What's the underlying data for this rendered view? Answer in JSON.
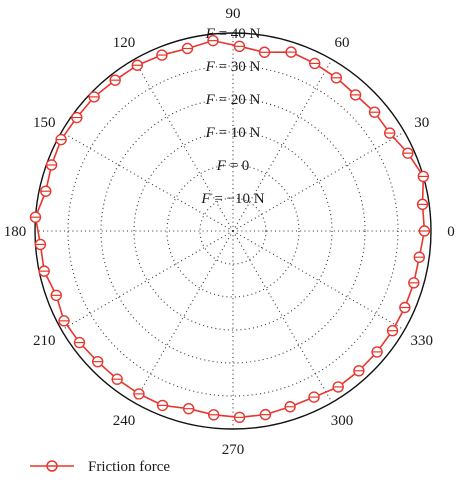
{
  "chart_data": {
    "type": "polar-line",
    "angular_axis": {
      "unit": "deg",
      "direction": "counterclockwise",
      "zero_at": "right",
      "tick_labels": [
        "0",
        "30",
        "60",
        "90",
        "120",
        "150",
        "180",
        "210",
        "240",
        "270",
        "300",
        "330"
      ]
    },
    "radial_axis": {
      "range": [
        -20,
        40
      ],
      "ring_values": [
        -10,
        0,
        10,
        20,
        30,
        40
      ],
      "ring_labels": [
        "F = −10 N",
        "F = 0",
        "F = 10 N",
        "F = 20 N",
        "F = 30 N",
        "F = 40 N"
      ],
      "label_angle_deg": 90
    },
    "grid": {
      "radial_spokes": true,
      "rings": true,
      "style": "dotted"
    },
    "legend": {
      "position": "bottom-left"
    },
    "series": [
      {
        "name": "Friction force",
        "color": "#e8362f",
        "marker": "circle-open",
        "angle_deg": [
          0,
          8,
          16,
          24,
          32,
          40,
          48,
          56,
          64,
          72,
          80,
          88,
          96,
          104,
          112,
          120,
          128,
          136,
          144,
          152,
          160,
          168,
          176,
          184,
          192,
          200,
          208,
          216,
          224,
          232,
          240,
          248,
          256,
          264,
          272,
          280,
          288,
          296,
          304,
          312,
          320,
          328,
          336,
          344,
          352
        ],
        "values": [
          38,
          38,
          40,
          38,
          36,
          36,
          35.5,
          36,
          36.5,
          37,
          35,
          36,
          38,
          37,
          37.5,
          38,
          38,
          38.5,
          38.5,
          39,
          38.5,
          38,
          40,
          38.5,
          38.5,
          37,
          38,
          37.5,
          37,
          37,
          37,
          37,
          35.5,
          36,
          36.5,
          36.5,
          36,
          36,
          37,
          37,
          37,
          37,
          37,
          37,
          37
        ]
      }
    ]
  }
}
